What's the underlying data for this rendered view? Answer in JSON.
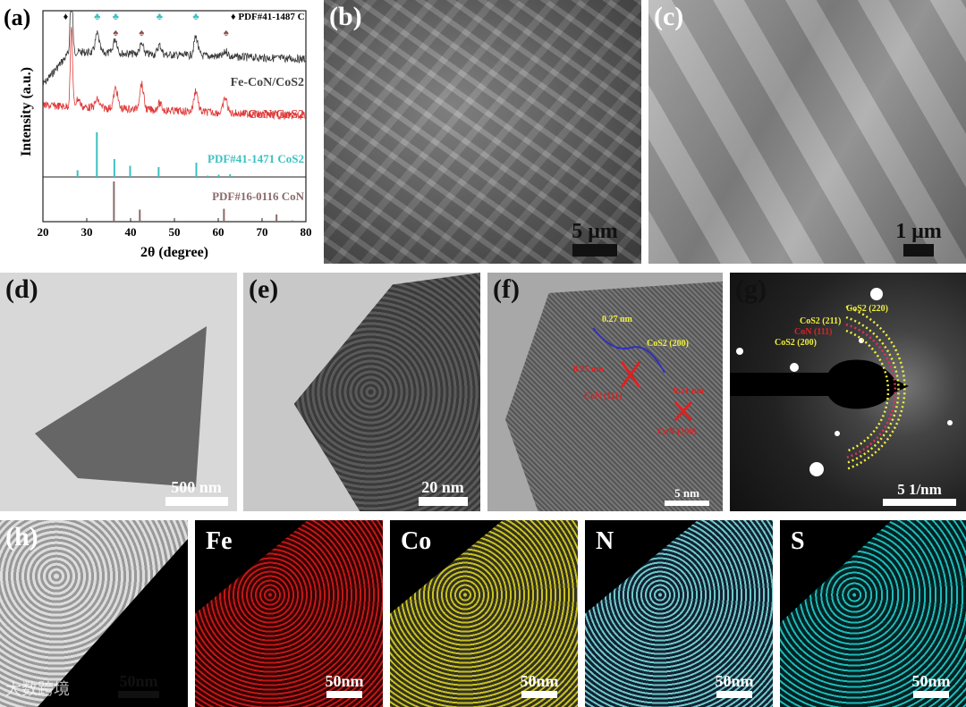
{
  "panels": {
    "a": {
      "label": "(a)"
    },
    "b": {
      "label": "(b)",
      "scale": "5 μm"
    },
    "c": {
      "label": "(c)",
      "scale": "1 μm"
    },
    "d": {
      "label": "(d)",
      "scale": "500 nm"
    },
    "e": {
      "label": "(e)",
      "scale": "20 nm"
    },
    "f": {
      "label": "(f)",
      "scale": "5 nm",
      "annotations": [
        "0.27 nm",
        "CoS2 (200)",
        "0.25 nm",
        "CoN (111)",
        "0.21 nm",
        "CoN (200)"
      ]
    },
    "g": {
      "label": "(g)",
      "scale": "5 1/nm",
      "rings": [
        "CoS2 (220)",
        "CoS2 (211)",
        "CoN (111)",
        "CoS2 (200)"
      ]
    },
    "h": {
      "label": "(h)",
      "scale": "50nm"
    },
    "fe": {
      "label": "Fe",
      "scale": "50nm",
      "color": "#e02020"
    },
    "co": {
      "label": "Co",
      "scale": "50nm",
      "color": "#d8d020"
    },
    "n": {
      "label": "N",
      "scale": "50nm",
      "color": "#70d8d8"
    },
    "s": {
      "label": "S",
      "scale": "50nm",
      "color": "#20c8c8"
    }
  },
  "watermark": "大数跨境",
  "chart_data": {
    "type": "line",
    "xlabel": "2θ (degree)",
    "ylabel": "Intensity (a.u.)",
    "xlim": [
      20,
      80
    ],
    "xticks": [
      20,
      30,
      40,
      50,
      60,
      70,
      80
    ],
    "legend_marker": "PDF#41-1487 C",
    "series": [
      {
        "name": "Fe-CoN/CoS2",
        "color": "#3a3a3a",
        "peaks": [
          [
            26.5,
            100
          ],
          [
            32.4,
            28
          ],
          [
            36.5,
            22
          ],
          [
            42.5,
            14
          ],
          [
            46.6,
            14
          ],
          [
            54.9,
            28
          ],
          [
            61.8,
            8
          ]
        ]
      },
      {
        "name": "CoN/CoS2",
        "color": "#e03a3a",
        "peaks": [
          [
            26.5,
            100
          ],
          [
            28.0,
            12
          ],
          [
            32.4,
            12
          ],
          [
            36.6,
            30
          ],
          [
            42.5,
            38
          ],
          [
            46.6,
            10
          ],
          [
            54.9,
            32
          ],
          [
            61.6,
            22
          ]
        ]
      }
    ],
    "references": [
      {
        "name": "PDF#41-1471 CoS2",
        "color": "#3cc0c0",
        "sticks": [
          [
            27.9,
            15
          ],
          [
            32.3,
            100
          ],
          [
            36.3,
            40
          ],
          [
            39.9,
            25
          ],
          [
            46.4,
            22
          ],
          [
            55.0,
            32
          ],
          [
            57.6,
            3
          ],
          [
            60.1,
            5
          ],
          [
            62.7,
            6
          ]
        ]
      },
      {
        "name": "PDF#16-0116 CoN",
        "color": "#8a6a6a",
        "sticks": [
          [
            36.2,
            100
          ],
          [
            42.1,
            30
          ],
          [
            61.3,
            32
          ],
          [
            73.3,
            18
          ],
          [
            76.9,
            3
          ]
        ]
      }
    ],
    "markers": [
      {
        "symbol": "♦",
        "x": 25.2,
        "color": "#111"
      },
      {
        "symbol": "♣",
        "x": 32.4,
        "color": "#3cc0c0"
      },
      {
        "symbol": "♣",
        "x": 36.6,
        "color": "#3cc0c0"
      },
      {
        "symbol": "♠",
        "x": 36.6,
        "color": "#8a5050"
      },
      {
        "symbol": "♠",
        "x": 42.5,
        "color": "#8a5050"
      },
      {
        "symbol": "♣",
        "x": 46.6,
        "color": "#3cc0c0"
      },
      {
        "symbol": "♣",
        "x": 54.9,
        "color": "#3cc0c0"
      },
      {
        "symbol": "♠",
        "x": 61.8,
        "color": "#8a5050"
      }
    ]
  }
}
